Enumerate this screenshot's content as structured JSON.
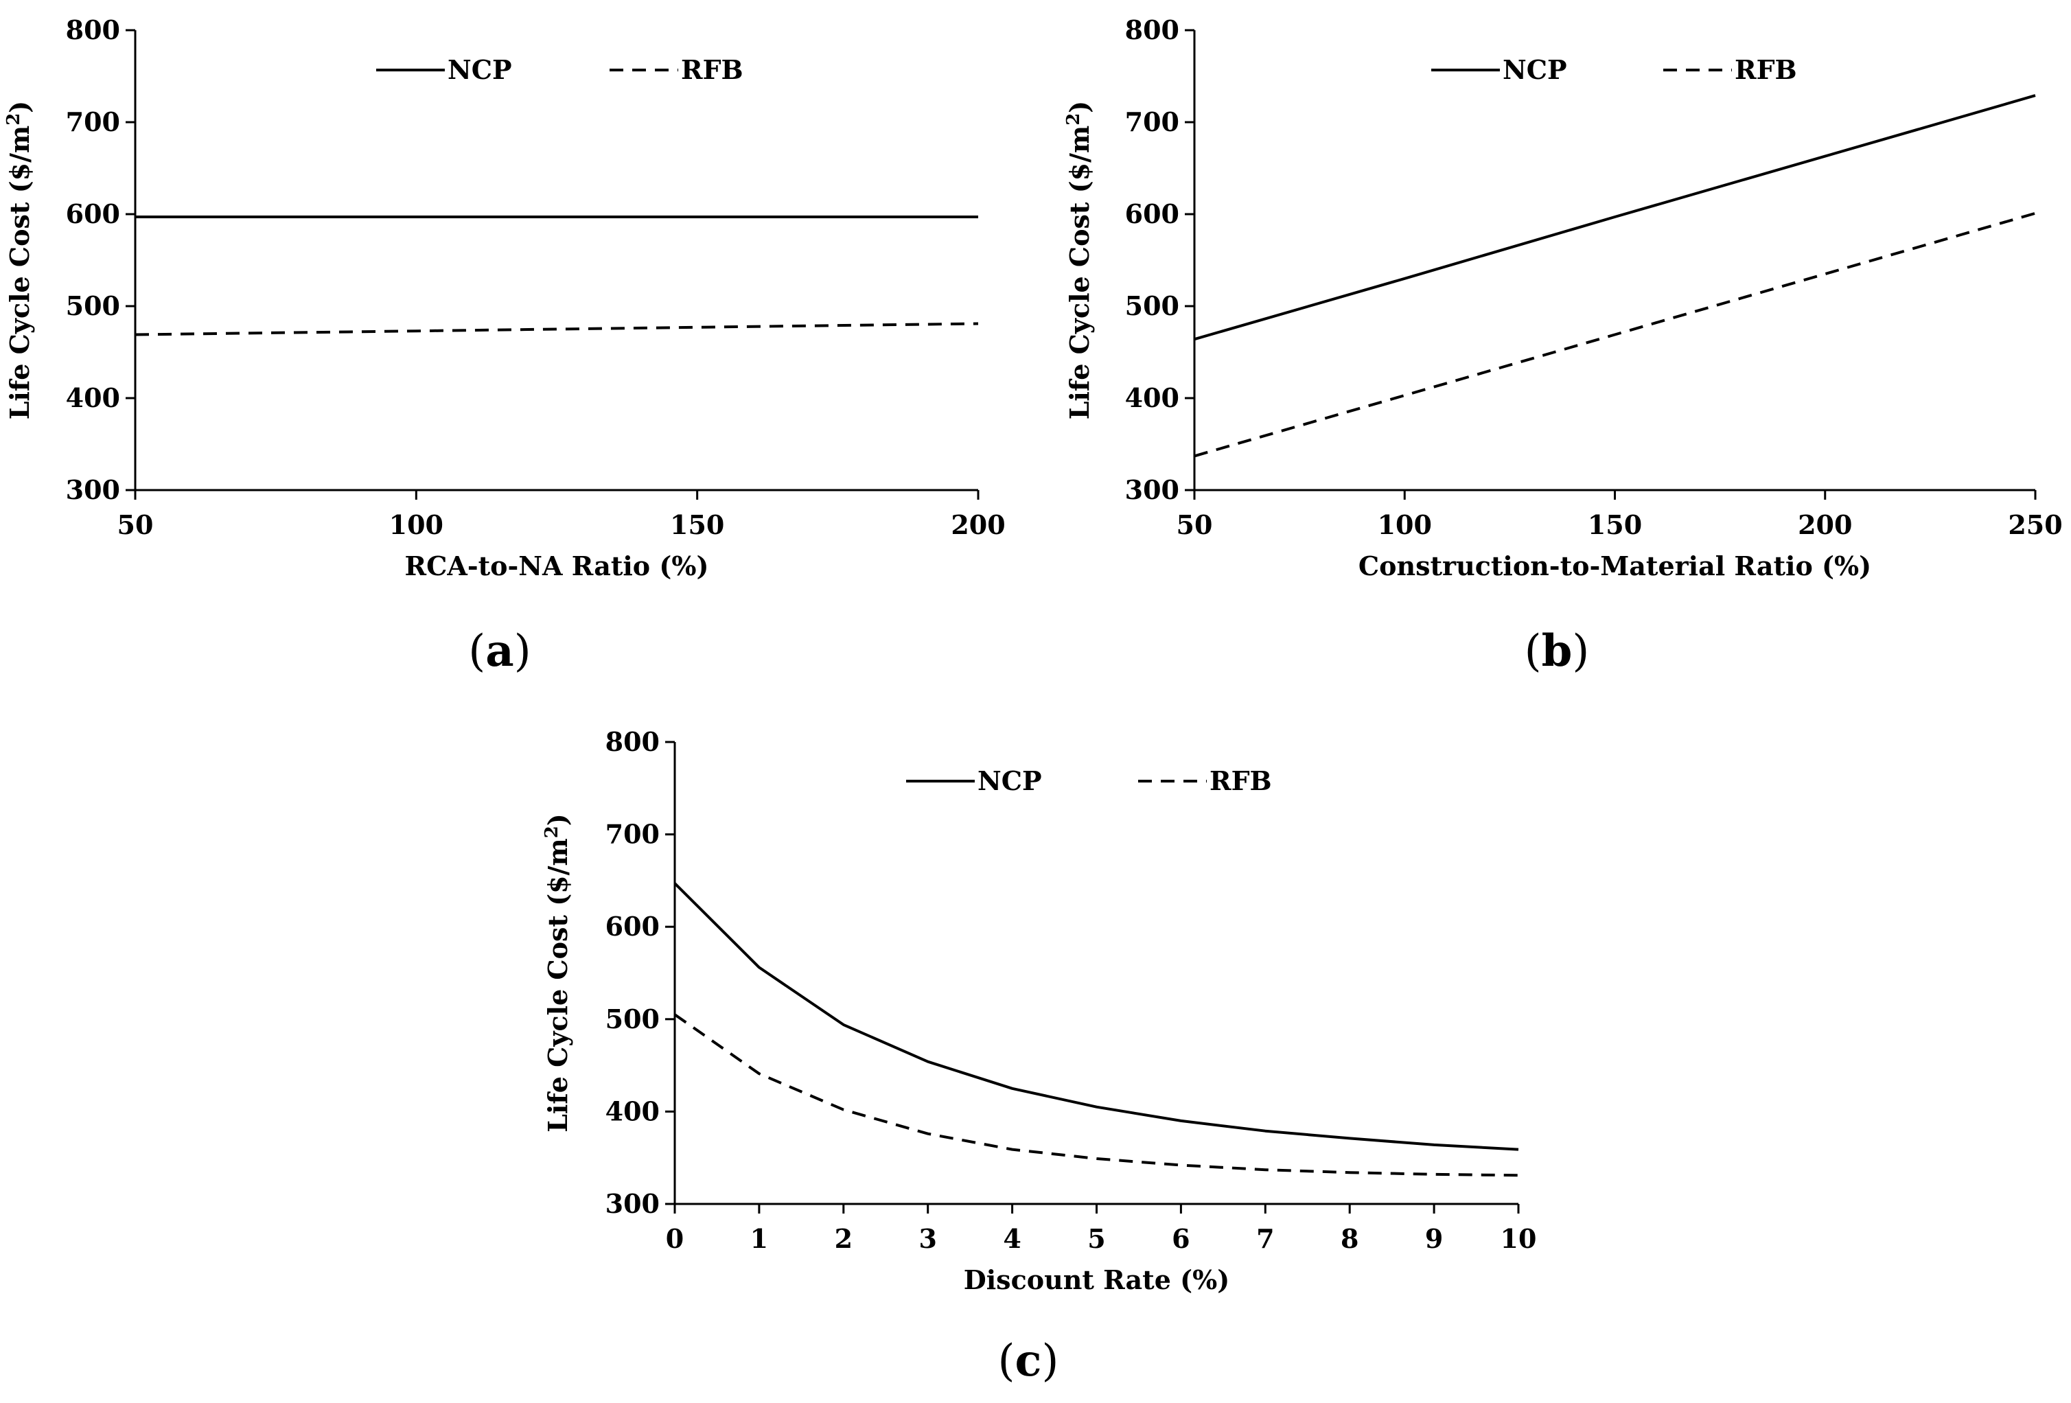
{
  "chart_data": [
    {
      "type": "line",
      "panel": "a",
      "xlabel": "RCA-to-NA Ratio (%)",
      "ylabel": "Life Cycle Cost ($/m²)",
      "ylabel_main": "Life Cycle Cost ($/m",
      "ylabel_sup": "2",
      "ylabel_end": ")",
      "xlim": [
        50,
        200
      ],
      "ylim": [
        300,
        800
      ],
      "xticks": [
        50,
        100,
        150,
        200
      ],
      "yticks": [
        300,
        400,
        500,
        600,
        700,
        800
      ],
      "grid": false,
      "legend_position": "top",
      "series": [
        {
          "name": "NCP",
          "style": "solid",
          "x": [
            50,
            100,
            150,
            200
          ],
          "y": [
            597,
            597,
            597,
            597
          ]
        },
        {
          "name": "RFB",
          "style": "dashed",
          "x": [
            50,
            100,
            150,
            200
          ],
          "y": [
            469,
            473,
            477,
            481
          ]
        }
      ]
    },
    {
      "type": "line",
      "panel": "b",
      "xlabel": "Construction-to-Material Ratio (%)",
      "ylabel": "Life Cycle Cost ($/m²)",
      "ylabel_main": "Life Cycle Cost ($/m",
      "ylabel_sup": "2",
      "ylabel_end": ")",
      "xlim": [
        50,
        250
      ],
      "ylim": [
        300,
        800
      ],
      "xticks": [
        50,
        100,
        150,
        200,
        250
      ],
      "yticks": [
        300,
        400,
        500,
        600,
        700,
        800
      ],
      "grid": false,
      "legend_position": "top",
      "series": [
        {
          "name": "NCP",
          "style": "solid",
          "x": [
            50,
            100,
            150,
            200,
            250
          ],
          "y": [
            464,
            530,
            597,
            663,
            729
          ]
        },
        {
          "name": "RFB",
          "style": "dashed",
          "x": [
            50,
            100,
            150,
            200,
            250
          ],
          "y": [
            337,
            403,
            469,
            535,
            601
          ]
        }
      ]
    },
    {
      "type": "line",
      "panel": "c",
      "xlabel": "Discount Rate (%)",
      "ylabel": "Life Cycle Cost ($/m²)",
      "ylabel_main": "Life Cycle Cost ($/m",
      "ylabel_sup": "2",
      "ylabel_end": ")",
      "xlim": [
        0,
        10
      ],
      "ylim": [
        300,
        800
      ],
      "xticks": [
        0,
        1,
        2,
        3,
        4,
        5,
        6,
        7,
        8,
        9,
        10
      ],
      "yticks": [
        300,
        400,
        500,
        600,
        700,
        800
      ],
      "grid": false,
      "legend_position": "top",
      "series": [
        {
          "name": "NCP",
          "style": "solid",
          "x": [
            0,
            1,
            2,
            3,
            4,
            5,
            6,
            7,
            8,
            9,
            10
          ],
          "y": [
            647,
            556,
            494,
            454,
            425,
            405,
            390,
            379,
            371,
            364,
            359
          ]
        },
        {
          "name": "RFB",
          "style": "dashed",
          "x": [
            0,
            1,
            2,
            3,
            4,
            5,
            6,
            7,
            8,
            9,
            10
          ],
          "y": [
            505,
            441,
            402,
            376,
            359,
            349,
            342,
            337,
            334,
            332,
            331
          ]
        }
      ]
    }
  ],
  "panel_labels": {
    "a": {
      "open": "(",
      "letter": "a",
      "close": ")"
    },
    "b": {
      "open": "(",
      "letter": "b",
      "close": ")"
    },
    "c": {
      "open": "(",
      "letter": "c",
      "close": ")"
    }
  },
  "colors": {
    "line": "#000000",
    "axis": "#000000",
    "background": "#ffffff"
  }
}
